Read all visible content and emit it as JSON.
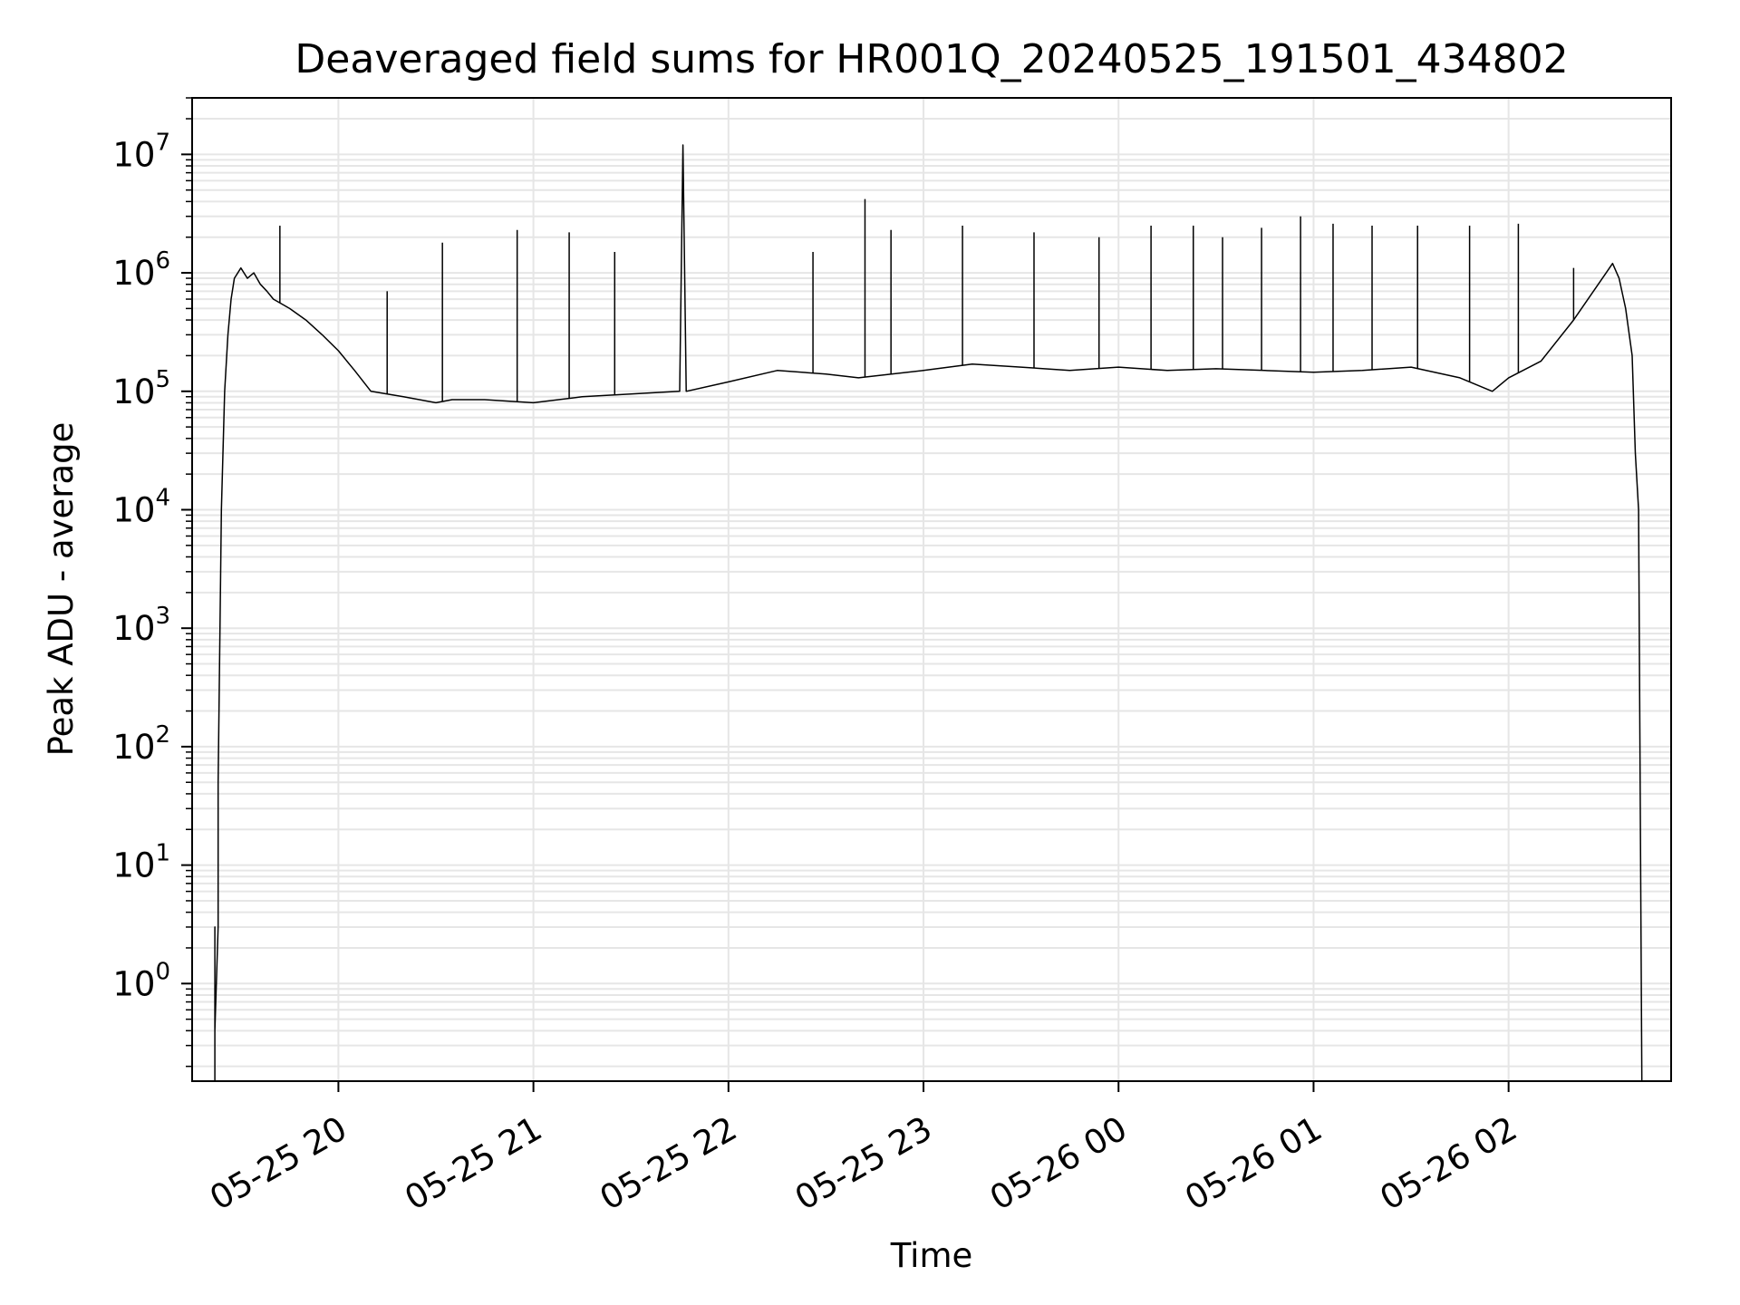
{
  "chart_data": {
    "type": "line",
    "title": "Deaveraged field sums for HR001Q_20240525_191501_434802",
    "xlabel": "Time",
    "ylabel": "Peak ADU - average",
    "yscale": "log",
    "ylim": [
      0.15,
      30000000
    ],
    "xlim": [
      "2024-05-25 19:15",
      "2024-05-26 02:50"
    ],
    "grid": true,
    "line_color": "#000000",
    "grid_color": "#e6e6e6",
    "x_ticks": [
      {
        "t": "2024-05-25 20:00",
        "label": "05-25 20"
      },
      {
        "t": "2024-05-25 21:00",
        "label": "05-25 21"
      },
      {
        "t": "2024-05-25 22:00",
        "label": "05-25 22"
      },
      {
        "t": "2024-05-25 23:00",
        "label": "05-25 23"
      },
      {
        "t": "2024-05-26 00:00",
        "label": "05-26 00"
      },
      {
        "t": "2024-05-26 01:00",
        "label": "05-26 01"
      },
      {
        "t": "2024-05-26 02:00",
        "label": "05-26 02"
      }
    ],
    "y_ticks": [
      {
        "value": 1,
        "base": "10",
        "exp": "0"
      },
      {
        "value": 10,
        "base": "10",
        "exp": "1"
      },
      {
        "value": 100,
        "base": "10",
        "exp": "2"
      },
      {
        "value": 1000,
        "base": "10",
        "exp": "3"
      },
      {
        "value": 10000,
        "base": "10",
        "exp": "4"
      },
      {
        "value": 100000,
        "base": "10",
        "exp": "5"
      },
      {
        "value": 1000000,
        "base": "10",
        "exp": "6"
      },
      {
        "value": 10000000,
        "base": "10",
        "exp": "7"
      }
    ],
    "series": [
      {
        "x": [
          "2024-05-25 19:22",
          "2024-05-25 19:22",
          "2024-05-25 19:22",
          "2024-05-25 19:23",
          "2024-05-25 19:23",
          "2024-05-25 19:24",
          "2024-05-25 19:25",
          "2024-05-25 19:26",
          "2024-05-25 19:27",
          "2024-05-25 19:28",
          "2024-05-25 19:30",
          "2024-05-25 19:32",
          "2024-05-25 19:34",
          "2024-05-25 19:36",
          "2024-05-25 19:38",
          "2024-05-25 19:40",
          "2024-05-25 19:45",
          "2024-05-25 19:50",
          "2024-05-25 19:55",
          "2024-05-25 20:00",
          "2024-05-25 20:05",
          "2024-05-25 20:10",
          "2024-05-25 20:20",
          "2024-05-25 20:30",
          "2024-05-25 20:35",
          "2024-05-25 20:45",
          "2024-05-25 21:00",
          "2024-05-25 21:15",
          "2024-05-25 21:30",
          "2024-05-25 21:45",
          "2024-05-25 21:46",
          "2024-05-25 21:47",
          "2024-05-25 22:00",
          "2024-05-25 22:15",
          "2024-05-25 22:30",
          "2024-05-25 22:40",
          "2024-05-25 23:00",
          "2024-05-25 23:15",
          "2024-05-25 23:30",
          "2024-05-25 23:45",
          "2024-05-26 00:00",
          "2024-05-26 00:15",
          "2024-05-26 00:30",
          "2024-05-26 00:45",
          "2024-05-26 01:00",
          "2024-05-26 01:15",
          "2024-05-26 01:30",
          "2024-05-26 01:45",
          "2024-05-26 01:55",
          "2024-05-26 02:00",
          "2024-05-26 02:10",
          "2024-05-26 02:20",
          "2024-05-26 02:30",
          "2024-05-26 02:32",
          "2024-05-26 02:34",
          "2024-05-26 02:36",
          "2024-05-26 02:38",
          "2024-05-26 02:39",
          "2024-05-26 02:40",
          "2024-05-26 02:41"
        ],
        "y": [
          0.15,
          3,
          0.4,
          3,
          50,
          10000,
          100000,
          300000,
          600000,
          900000,
          1100000,
          900000,
          1000000,
          800000,
          700000,
          600000,
          500000,
          400000,
          300000,
          220000,
          150000,
          100000,
          90000,
          80000,
          85000,
          85000,
          80000,
          90000,
          95000,
          100000,
          12000000,
          100000,
          120000,
          150000,
          140000,
          130000,
          150000,
          170000,
          160000,
          150000,
          160000,
          150000,
          155000,
          150000,
          145000,
          150000,
          160000,
          130000,
          100000,
          130000,
          180000,
          400000,
          1000000,
          1200000,
          900000,
          500000,
          200000,
          30000,
          10000,
          0.15
        ],
        "spikes": [
          {
            "t": "2024-05-25 19:42",
            "v": 2500000
          },
          {
            "t": "2024-05-25 20:15",
            "v": 700000
          },
          {
            "t": "2024-05-25 20:32",
            "v": 1800000
          },
          {
            "t": "2024-05-25 20:55",
            "v": 2300000
          },
          {
            "t": "2024-05-25 21:11",
            "v": 2200000
          },
          {
            "t": "2024-05-25 21:25",
            "v": 1500000
          },
          {
            "t": "2024-05-25 22:26",
            "v": 1500000
          },
          {
            "t": "2024-05-25 22:42",
            "v": 4200000
          },
          {
            "t": "2024-05-25 22:50",
            "v": 2300000
          },
          {
            "t": "2024-05-25 23:12",
            "v": 2500000
          },
          {
            "t": "2024-05-25 23:34",
            "v": 2200000
          },
          {
            "t": "2024-05-25 23:54",
            "v": 2000000
          },
          {
            "t": "2024-05-26 00:10",
            "v": 2500000
          },
          {
            "t": "2024-05-26 00:23",
            "v": 2500000
          },
          {
            "t": "2024-05-26 00:32",
            "v": 2000000
          },
          {
            "t": "2024-05-26 00:44",
            "v": 2400000
          },
          {
            "t": "2024-05-26 00:56",
            "v": 3000000
          },
          {
            "t": "2024-05-26 01:06",
            "v": 2600000
          },
          {
            "t": "2024-05-26 01:18",
            "v": 2500000
          },
          {
            "t": "2024-05-26 01:32",
            "v": 2500000
          },
          {
            "t": "2024-05-26 01:48",
            "v": 2500000
          },
          {
            "t": "2024-05-26 02:03",
            "v": 2600000
          },
          {
            "t": "2024-05-26 02:20",
            "v": 1100000
          }
        ]
      }
    ]
  }
}
